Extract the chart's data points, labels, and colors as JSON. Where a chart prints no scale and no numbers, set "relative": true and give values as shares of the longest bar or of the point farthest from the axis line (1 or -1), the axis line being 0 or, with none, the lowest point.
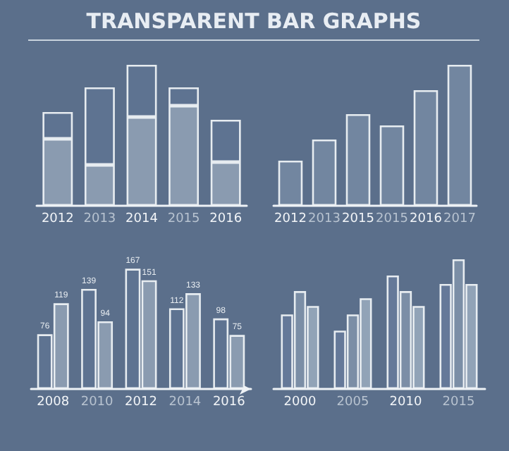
{
  "chart_data": [
    {
      "type": "bar",
      "title": "TRANSPARENT BAR GRAPHS",
      "categories": [
        "2012",
        "2013",
        "2014",
        "2015",
        "2016"
      ],
      "relative": true,
      "stacked": true,
      "series": [
        {
          "color": "#8d9db2",
          "values": [
            0.475,
            0.29,
            0.63,
            0.71,
            0.31
          ]
        },
        {
          "color": "#5f7391",
          "values": [
            0.19,
            0.55,
            0.37,
            0.13,
            0.3
          ]
        }
      ]
    },
    {
      "type": "bar",
      "categories": [
        "2012",
        "2013",
        "2015",
        "2015",
        "2016",
        "2017"
      ],
      "relative": true,
      "color": "#7487a1",
      "values": [
        0.32,
        0.47,
        0.65,
        0.57,
        0.82,
        1
      ]
    },
    {
      "type": "bar",
      "categories": [
        "2008",
        "2010",
        "2012",
        "2014",
        "2016"
      ],
      "data_labels": true,
      "series": [
        {
          "color": "#5f7391",
          "values": [
            76,
            139,
            167,
            112,
            98
          ]
        },
        {
          "color": "#8d9db2",
          "values": [
            119,
            94,
            151,
            133,
            75
          ]
        }
      ]
    },
    {
      "type": "bar",
      "categories": [
        "2000",
        "2005",
        "2010",
        "2015"
      ],
      "relative": true,
      "series": [
        {
          "color": "#66799a",
          "values": [
            0.575,
            0.45,
            0.875,
            0.81
          ]
        },
        {
          "color": "#7d8fa8",
          "values": [
            0.755,
            0.575,
            0.755,
            1
          ]
        },
        {
          "color": "#95a5b9",
          "values": [
            0.64,
            0.7,
            0.64,
            0.81
          ]
        }
      ]
    }
  ]
}
